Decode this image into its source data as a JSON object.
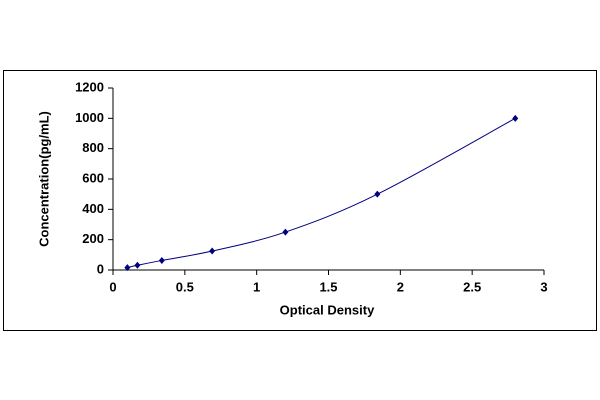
{
  "chart_data": {
    "type": "scatter",
    "x_label": "Optical Density",
    "y_label": "Concentration(pg/mL)",
    "x": [
      0.1,
      0.17,
      0.34,
      0.69,
      1.2,
      1.84,
      2.8
    ],
    "values": [
      16,
      31,
      63,
      125,
      250,
      500,
      1000
    ],
    "color": "#000080",
    "trendline": true,
    "grid": false,
    "xlim": [
      0,
      3
    ],
    "xticks": [
      0,
      0.5,
      1,
      1.5,
      2,
      2.5,
      3
    ],
    "ylim": [
      0,
      1200
    ],
    "yticks": [
      0,
      200,
      400,
      600,
      800,
      1000,
      1200
    ]
  }
}
